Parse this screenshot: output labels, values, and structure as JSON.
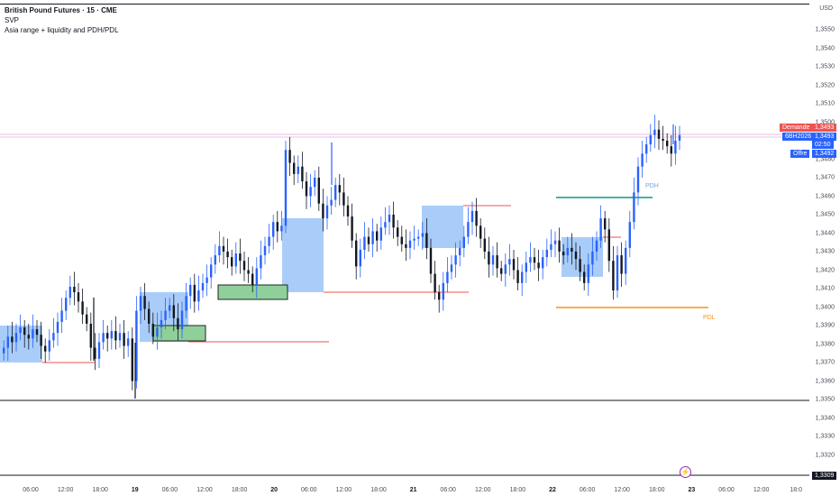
{
  "legend": {
    "title": "British Pound Futures · 15 · CME",
    "line2": "SVP",
    "line3": "Asia range + liquidity and PDH/PDL"
  },
  "price_axis": {
    "currency": "USD",
    "ticks": [
      "1,3550",
      "1,3540",
      "1,3530",
      "1,3520",
      "1,3510",
      "1,3500",
      "1,3490",
      "1,3480",
      "1,3470",
      "1,3460",
      "1,3450",
      "1,3440",
      "1,3430",
      "1,3420",
      "1,3410",
      "1,3400",
      "1,3390",
      "1,3380",
      "1,3370",
      "1,3360",
      "1,3350",
      "1,3340",
      "1,3330",
      "1,3320"
    ],
    "bottom_label": "1,3309",
    "demande_label": "Demande",
    "demande_value": "1,3493",
    "symbol_label": "6BH2026",
    "symbol_value": "1,3493",
    "countdown": "02:50",
    "offre_label": "Offre",
    "offre_value": "1,3492"
  },
  "time_axis": {
    "labels": [
      "06:00",
      "12:00",
      "18:00",
      "19",
      "06:00",
      "12:00",
      "18:00",
      "20",
      "06:00",
      "12:00",
      "18:00",
      "21",
      "06:00",
      "12:00",
      "18:00",
      "22",
      "06:00",
      "12:00",
      "18:00",
      "23",
      "06:00",
      "12:00",
      "18:0"
    ],
    "bold": [
      false,
      false,
      false,
      true,
      false,
      false,
      false,
      true,
      false,
      false,
      false,
      true,
      false,
      false,
      false,
      true,
      false,
      false,
      false,
      true,
      false,
      false,
      false
    ]
  },
  "annotations": {
    "pdh": "PDH",
    "pdl": "PDL"
  },
  "colors": {
    "asia_box": "#a9cdf8",
    "liquidity_box": "#8fd09a",
    "liquidity_line": "#ef5350",
    "pdh_line": "#089981",
    "pdl_line": "#f7931a",
    "demande": "#ef5350",
    "symbol": "#2962ff",
    "offre": "#2962ff",
    "up_candle": "#2962ff",
    "down_candle": "#131722"
  },
  "lightning_icon": "lightning-icon",
  "chart_data": {
    "type": "candlestick",
    "series_price_close": [
      1.3378,
      1.3384,
      1.3381,
      1.3386,
      1.3389,
      1.3385,
      1.3383,
      1.3388,
      1.3385,
      1.3379,
      1.3376,
      1.3382,
      1.3386,
      1.3392,
      1.3398,
      1.3405,
      1.3411,
      1.3408,
      1.3403,
      1.3396,
      1.3391,
      1.3378,
      1.3372,
      1.3381,
      1.3386,
      1.3383,
      1.3387,
      1.3382,
      1.3386,
      1.3379,
      1.3383,
      1.336,
      1.3398,
      1.3406,
      1.3399,
      1.3391,
      1.3384,
      1.3389,
      1.3393,
      1.3398,
      1.3401,
      1.3394,
      1.3388,
      1.3398,
      1.3406,
      1.3412,
      1.3403,
      1.3409,
      1.3413,
      1.3416,
      1.3423,
      1.3428,
      1.3433,
      1.343,
      1.3427,
      1.3422,
      1.3429,
      1.3425,
      1.342,
      1.3418,
      1.3412,
      1.3421,
      1.3428,
      1.3433,
      1.3438,
      1.3446,
      1.3441,
      1.3444,
      1.3485,
      1.3478,
      1.3472,
      1.3476,
      1.3468,
      1.346,
      1.3465,
      1.347,
      1.3456,
      1.3448,
      1.3455,
      1.3458,
      1.3466,
      1.3462,
      1.3455,
      1.3449,
      1.3436,
      1.3422,
      1.3431,
      1.3438,
      1.3434,
      1.3441,
      1.3436,
      1.3443,
      1.3446,
      1.345,
      1.3443,
      1.3438,
      1.3434,
      1.3432,
      1.3436,
      1.3437,
      1.3438,
      1.344,
      1.3432,
      1.3418,
      1.3408,
      1.3404,
      1.3413,
      1.3419,
      1.3423,
      1.3428,
      1.3432,
      1.3438,
      1.3446,
      1.3452,
      1.3444,
      1.3437,
      1.343,
      1.3423,
      1.3428,
      1.3421,
      1.3418,
      1.3423,
      1.3426,
      1.342,
      1.3413,
      1.3419,
      1.3424,
      1.3427,
      1.3424,
      1.3421,
      1.3427,
      1.3431,
      1.3434,
      1.3436,
      1.343,
      1.3428,
      1.3432,
      1.343,
      1.3426,
      1.3419,
      1.3413,
      1.3423,
      1.343,
      1.3436,
      1.3448,
      1.3442,
      1.3425,
      1.3409,
      1.3428,
      1.3418,
      1.3432,
      1.3446,
      1.3462,
      1.3476,
      1.3483,
      1.3488,
      1.3493,
      1.3496,
      1.3491,
      1.349,
      1.3487,
      1.3483,
      1.349,
      1.3493
    ]
  }
}
